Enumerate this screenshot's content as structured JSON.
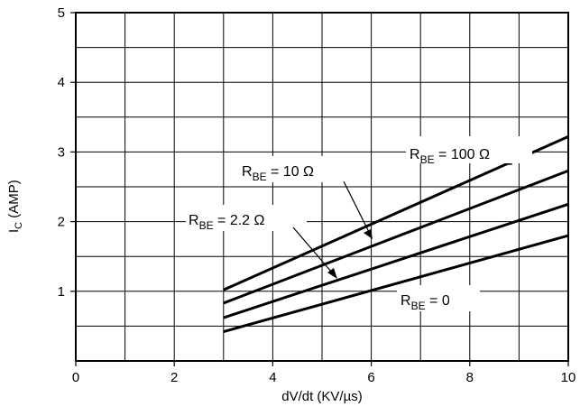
{
  "chart_data": {
    "type": "line",
    "title": "",
    "xlabel": "dV/dt (KV/µs)",
    "ylabel": {
      "main": "I",
      "sub": "C",
      "unit": " (AMP)"
    },
    "xlim": [
      0,
      10
    ],
    "ylim": [
      0,
      5
    ],
    "x_ticks": [
      "0",
      "2",
      "4",
      "6",
      "8",
      "10"
    ],
    "y_ticks": [
      "1",
      "2",
      "3",
      "4",
      "5"
    ],
    "grid": true,
    "series": [
      {
        "name": "RBE = 100 Ω",
        "x": [
          3,
          10
        ],
        "y": [
          1.02,
          3.22
        ]
      },
      {
        "name": "RBE = 10 Ω",
        "x": [
          3,
          10
        ],
        "y": [
          0.83,
          2.73
        ]
      },
      {
        "name": "RBE = 2.2 Ω",
        "x": [
          3,
          10
        ],
        "y": [
          0.62,
          2.25
        ]
      },
      {
        "name": "RBE = 0",
        "x": [
          3,
          10
        ],
        "y": [
          0.42,
          1.8
        ]
      }
    ],
    "annotations": [
      {
        "main": "R",
        "sub": "BE",
        "value": " = 100 Ω"
      },
      {
        "main": "R",
        "sub": "BE",
        "value": " = 10 Ω"
      },
      {
        "main": "R",
        "sub": "BE",
        "value": " = 2.2 Ω"
      },
      {
        "main": "R",
        "sub": "BE",
        "value": " = 0"
      }
    ]
  }
}
